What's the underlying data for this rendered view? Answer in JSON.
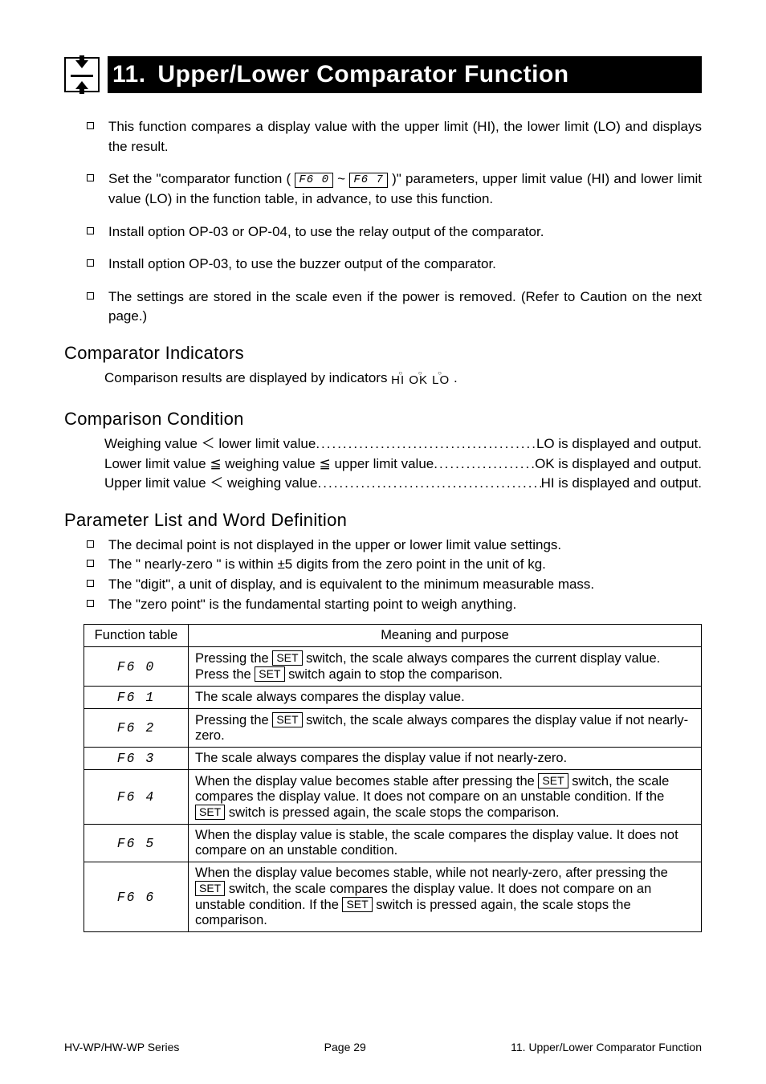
{
  "title": {
    "number": "11.",
    "text": "Upper/Lower Comparator Function"
  },
  "intro_bullets": [
    "This function compares a display value with the upper limit (HI), the lower limit (LO) and displays the result.",
    "__SETLINE__",
    "Install option OP-03 or OP-04, to use the relay output of the comparator.",
    "Install option OP-03, to use the buzzer output of the comparator.",
    "The settings are stored in the scale even if the power is removed. (Refer to Caution on the next page.)"
  ],
  "setline": {
    "prefix": "Set the \"comparator function ( ",
    "key1": "F6 0",
    "mid": " ~ ",
    "key2": "F6 7",
    "suffix": " )\" parameters, upper limit value (HI) and lower limit value (LO) in the function table, in advance, to use this function."
  },
  "sections": {
    "indicators": {
      "heading": "Comparator Indicators",
      "text_prefix": "Comparison results are displayed by indicators ",
      "hiloko": "HI  OK LO",
      "text_suffix": " ."
    },
    "condition": {
      "heading": "Comparison Condition",
      "rows": [
        {
          "left": "Weighing value ＜ lower limit value",
          "right": "LO is displayed and output."
        },
        {
          "left": "Lower limit value ≦ weighing value ≦ upper limit value",
          "right": "OK is displayed and output."
        },
        {
          "left": "Upper limit value ＜ weighing value",
          "right": "HI is displayed and output."
        }
      ]
    },
    "paramlist": {
      "heading": "Parameter List and Word Definition",
      "bullets": [
        "The decimal point is not displayed in the upper or lower limit value settings.",
        "The \" nearly-zero \" is within ±5 digits from the zero point in the unit of kg.",
        "The \"digit\", a unit of display, and is equivalent to the minimum measurable mass.",
        "The \"zero point\" is the fundamental starting point to weigh anything."
      ]
    }
  },
  "table": {
    "headers": [
      "Function table",
      "Meaning and purpose"
    ],
    "rows": [
      {
        "code": "F6 0",
        "desc_parts": [
          "Pressing the ",
          "SET",
          " switch, the scale always compares the current display value. Press the ",
          "SET",
          " switch again to stop the comparison."
        ]
      },
      {
        "code": "F6  1",
        "desc_parts": [
          "The scale always compares the display value."
        ]
      },
      {
        "code": "F6 2",
        "desc_parts": [
          "Pressing the ",
          "SET",
          " switch, the scale always compares the display value if not nearly-zero."
        ]
      },
      {
        "code": "F6 3",
        "desc_parts": [
          "The scale always compares the display value if not nearly-zero."
        ]
      },
      {
        "code": "F6 4",
        "desc_parts": [
          "When the display value becomes stable after pressing the ",
          "SET",
          " switch, the scale compares the display value. It does not compare on an unstable condition. If the ",
          "SET",
          " switch is pressed again, the scale stops the comparison."
        ]
      },
      {
        "code": "F6 5",
        "desc_parts": [
          "When the display value is stable, the scale compares the display value. It does not compare on an unstable condition."
        ]
      },
      {
        "code": "F6 6",
        "desc_parts": [
          "When the display value becomes stable, while not nearly-zero, after pressing the ",
          "SET",
          " switch, the scale compares the display value. It does not compare on an unstable condition. If the ",
          "SET",
          " switch is pressed again, the scale stops the comparison."
        ]
      }
    ]
  },
  "footer": {
    "left": "HV-WP/HW-WP Series",
    "center": "Page 29",
    "right": "11. Upper/Lower Comparator Function"
  }
}
